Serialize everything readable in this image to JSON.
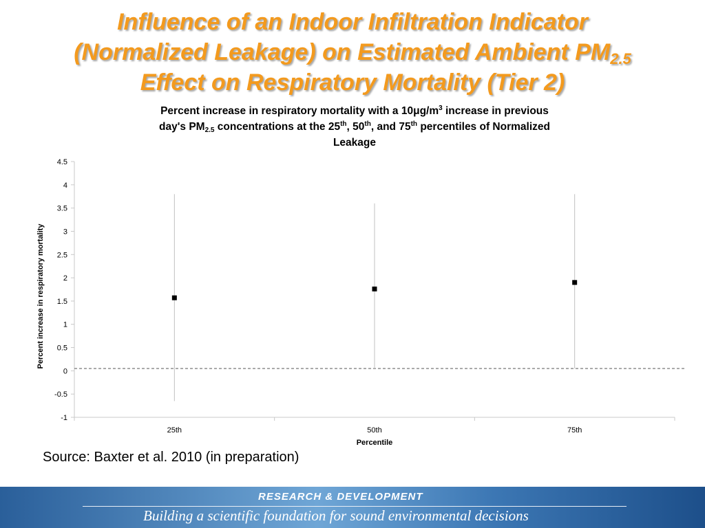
{
  "slide": {
    "title_line1": "Influence of an Indoor Infiltration Indicator",
    "title_line2_main": "(Normalized Leakage) on Estimated Ambient PM",
    "title_line2_sub": "2.5",
    "title_line3": "Effect on Respiratory Mortality (Tier 2)",
    "source": "Source: Baxter et al. 2010 (in preparation)",
    "title_color": "#f39a1e"
  },
  "chart_title": {
    "part1": "Percent increase in respiratory mortality with a 10",
    "mu": "μ",
    "part2": "g/m",
    "sup_3": "3",
    "part3": " increase in previous",
    "part4": "day's PM",
    "sub_25": "2.5",
    "part5": " concentrations at the 25",
    "sup_th1": "th",
    "part6": ", 50",
    "sup_th2": "th",
    "part7": ", and 75",
    "sup_th3": "th",
    "part8": " percentiles of Normalized",
    "part9": "Leakage"
  },
  "chart_data": {
    "type": "scatter",
    "categories": [
      "25th",
      "50th",
      "75th"
    ],
    "values": [
      1.57,
      1.76,
      1.9
    ],
    "ci_low": [
      -0.65,
      0.05,
      0.05
    ],
    "ci_high": [
      3.8,
      3.6,
      3.8
    ],
    "reference_line": 0.05,
    "xlabel": "Percentile",
    "ylabel": "Percent increase in respiratory mortality",
    "ylim": [
      -1,
      4.5
    ],
    "yticks": [
      "4.5",
      "4",
      "3.5",
      "3",
      "2.5",
      "2",
      "1.5",
      "1",
      "0.5",
      "0",
      "-0.5",
      "-1"
    ],
    "ytick_values": [
      4.5,
      4,
      3.5,
      3,
      2.5,
      2,
      1.5,
      1,
      0.5,
      0,
      -0.5,
      -1
    ],
    "grid": false,
    "marker_color": "#000000"
  },
  "footer": {
    "top": "RESEARCH &  DEVELOPMENT",
    "bottom": "Building a scientific foundation for sound environmental decisions"
  }
}
